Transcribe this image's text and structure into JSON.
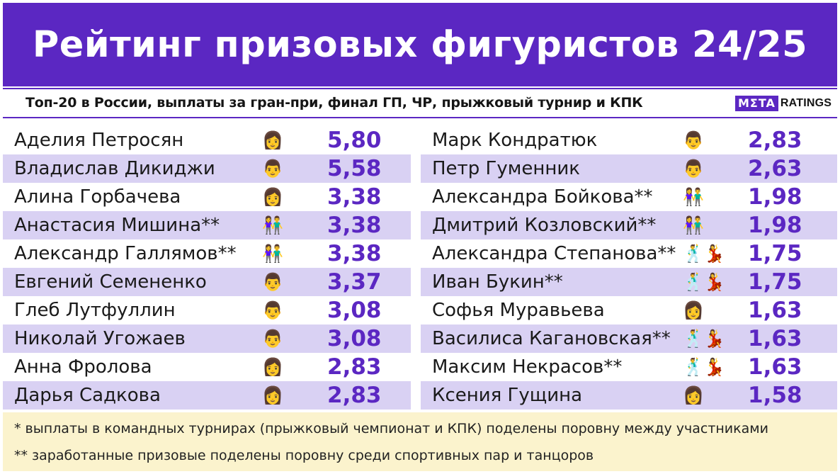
{
  "title": "Рейтинг призовых фигуристов 24/25",
  "subtitle": "Топ-20 в России, выплаты за гран-при, финал ГП, ЧР, прыжковый турнир и КПК",
  "logo": {
    "part1": "MΣTA",
    "part2": "RATINGS"
  },
  "left_rows": [
    {
      "name": "Аделия Петросян",
      "icon": "👩",
      "icon_name": "woman-icon",
      "value": "5,80"
    },
    {
      "name": "Владислав Дикиджи",
      "icon": "👨",
      "icon_name": "man-icon",
      "value": "5,58"
    },
    {
      "name": "Алина Горбачева",
      "icon": "👩",
      "icon_name": "woman-icon",
      "value": "3,38"
    },
    {
      "name": "Анастасия Мишина**",
      "icon": "👫",
      "icon_name": "pair-icon",
      "value": "3,38"
    },
    {
      "name": "Александр Галлямов**",
      "icon": "👫",
      "icon_name": "pair-icon",
      "value": "3,38"
    },
    {
      "name": "Евгений Семененко",
      "icon": "👨",
      "icon_name": "man-icon",
      "value": "3,37"
    },
    {
      "name": "Глеб Лутфуллин",
      "icon": "👨",
      "icon_name": "man-icon",
      "value": "3,08"
    },
    {
      "name": "Николай Угожаев",
      "icon": "👨",
      "icon_name": "man-icon",
      "value": "3,08"
    },
    {
      "name": "Анна Фролова",
      "icon": "👩",
      "icon_name": "woman-icon",
      "value": "2,83"
    },
    {
      "name": "Дарья Садкова",
      "icon": "👩",
      "icon_name": "woman-icon",
      "value": "2,83"
    }
  ],
  "right_rows": [
    {
      "name": "Марк Кондратюк",
      "icon": "👨",
      "icon_name": "man-icon",
      "value": "2,83"
    },
    {
      "name": "Петр Гуменник",
      "icon": "👨",
      "icon_name": "man-icon",
      "value": "2,63"
    },
    {
      "name": "Александра Бойкова**",
      "icon": "👫",
      "icon_name": "pair-icon",
      "value": "1,98"
    },
    {
      "name": "Дмитрий Козловский**",
      "icon": "👫",
      "icon_name": "pair-icon",
      "value": "1,98"
    },
    {
      "name": "Александра Степанова**",
      "icon": "🕺💃",
      "icon_name": "dancers-icon",
      "value": "1,75"
    },
    {
      "name": "Иван Букин**",
      "icon": "🕺💃",
      "icon_name": "dancers-icon",
      "value": "1,75"
    },
    {
      "name": "Софья Муравьева",
      "icon": "👩",
      "icon_name": "woman-icon",
      "value": "1,63"
    },
    {
      "name": "Василиса Кагановская**",
      "icon": "🕺💃",
      "icon_name": "dancers-icon",
      "value": "1,63"
    },
    {
      "name": "Максим Некрасов**",
      "icon": "🕺💃",
      "icon_name": "dancers-icon",
      "value": "1,63"
    },
    {
      "name": "Ксения Гущина",
      "icon": "👩",
      "icon_name": "woman-icon",
      "value": "1,58"
    }
  ],
  "notes": {
    "note1": "* выплаты в командных турнирах (прыжковый чемпионат и КПК) поделены поровну между участниками",
    "note2": "** заработанные призовые поделены поровну среди спортивных пар и танцоров"
  },
  "colors": {
    "accent": "#5b27c2",
    "stripe": "#d9d1f3",
    "footer_bg": "#fbf3cd"
  }
}
